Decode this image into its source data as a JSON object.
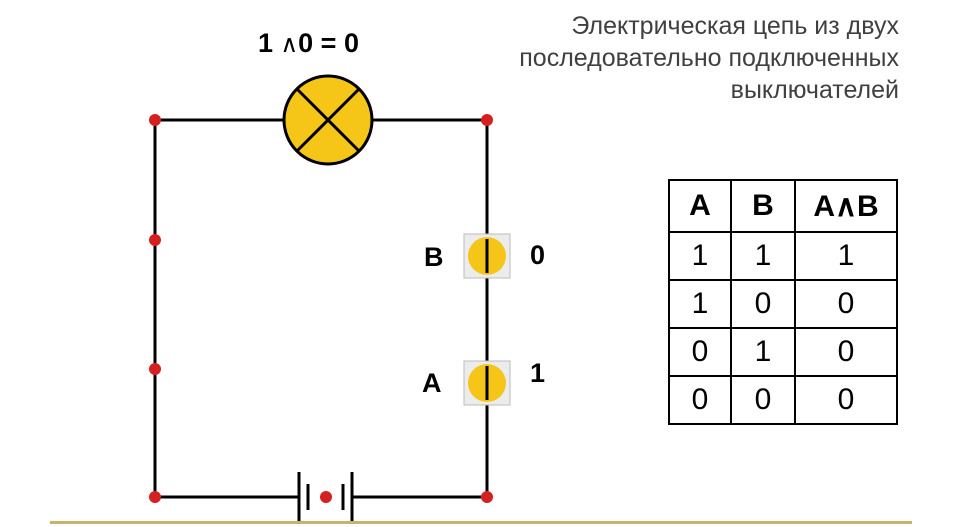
{
  "title_lines": [
    "Электрическая цепь из двух",
    "последовательно подключенных",
    "выключателей"
  ],
  "equation": {
    "left": "1",
    "op": "∧",
    "right": "0",
    "eq": "=",
    "result": "0"
  },
  "switches": [
    {
      "label": "B",
      "state": "0"
    },
    {
      "label": "A",
      "state": "1"
    }
  ],
  "truth_table": {
    "headers": [
      "A",
      "B",
      "A∧B"
    ],
    "rows": [
      [
        "1",
        "1",
        "1"
      ],
      [
        "1",
        "0",
        "0"
      ],
      [
        "0",
        "1",
        "0"
      ],
      [
        "0",
        "0",
        "0"
      ]
    ]
  },
  "colors": {
    "wire": "#000000",
    "node": "#d42020",
    "lamp": "#f5c518",
    "switch_fill": "#f5c518",
    "switch_bg": "#ececec",
    "rule": "#c9b36a"
  }
}
